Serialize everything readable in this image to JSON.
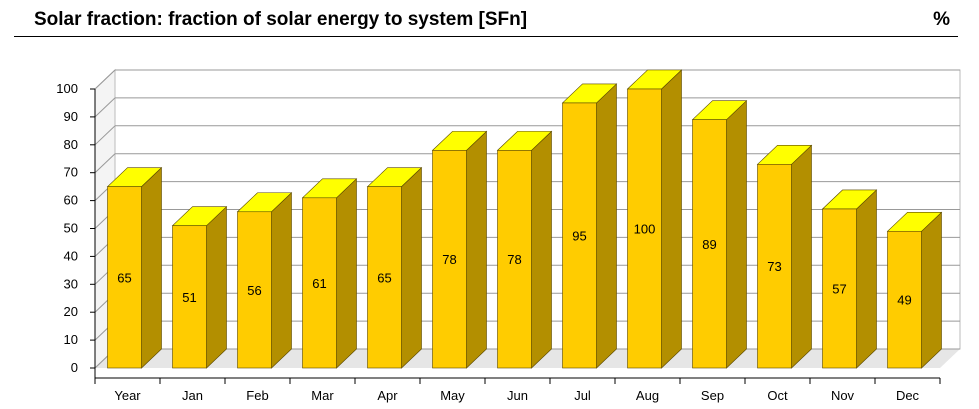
{
  "header": {
    "title": "Solar fraction: fraction of solar energy to system [SFn]",
    "unit": "%"
  },
  "colors": {
    "bar_front": "#FFCC00",
    "bar_top": "#FFFF00",
    "bar_side": "#B38F00",
    "grid": "#999999",
    "wall": "#ffffff",
    "floor": "#e6e6e6"
  },
  "chart_data": {
    "type": "bar",
    "title": "Solar fraction: fraction of solar energy to system [SFn]",
    "xlabel": "",
    "ylabel": "",
    "ylim": [
      0,
      100
    ],
    "yticks": [
      0,
      10,
      20,
      30,
      40,
      50,
      60,
      70,
      80,
      90,
      100
    ],
    "grid": true,
    "categories": [
      "Year",
      "Jan",
      "Feb",
      "Mar",
      "Apr",
      "May",
      "Jun",
      "Jul",
      "Aug",
      "Sep",
      "Oct",
      "Nov",
      "Dec"
    ],
    "values": [
      65,
      51,
      56,
      61,
      65,
      78,
      78,
      95,
      100,
      89,
      73,
      57,
      49
    ],
    "data_labels": [
      "65",
      "51",
      "56",
      "61",
      "65",
      "78",
      "78",
      "95",
      "100",
      "89",
      "73",
      "57",
      "49"
    ]
  }
}
